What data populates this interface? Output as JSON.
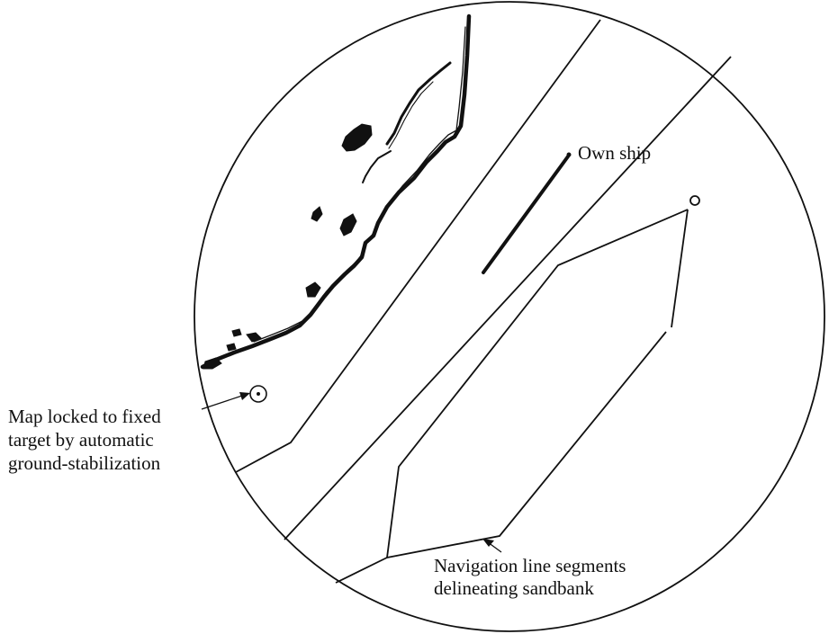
{
  "diagram": {
    "labels": {
      "own_ship": "Own ship",
      "fixed_target": [
        "Map locked to fixed",
        "target by automatic",
        "ground-stabilization"
      ],
      "sandbank": [
        "Navigation line segments",
        "delineating sandbank"
      ]
    },
    "colors": {
      "ink": "#111111",
      "background": "#ffffff"
    }
  }
}
